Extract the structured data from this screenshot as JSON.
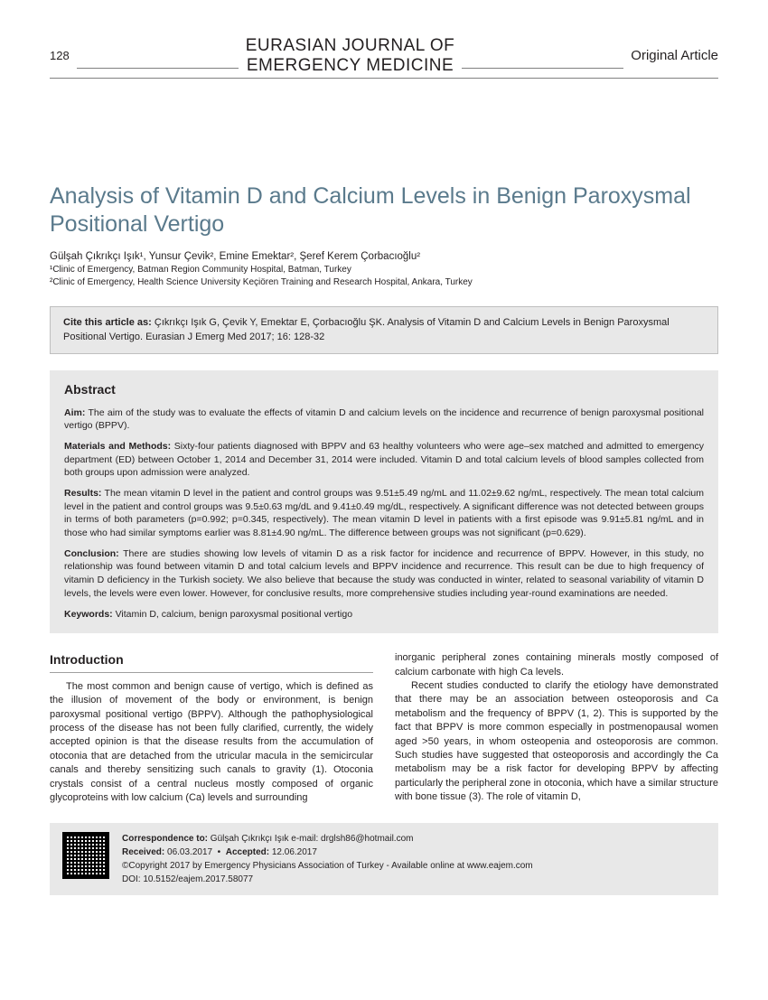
{
  "header": {
    "page_number": "128",
    "journal_line1": "EURASIAN JOURNAL OF",
    "journal_line2": "EMERGENCY MEDICINE",
    "article_type": "Original Article"
  },
  "title": "Analysis of Vitamin D and Calcium Levels in Benign Paroxysmal Positional Vertigo",
  "authors": "Gülşah Çıkrıkçı Işık¹, Yunsur Çevik², Emine Emektar², Şeref Kerem Çorbacıoğlu²",
  "affiliations": {
    "a1": "¹Clinic of Emergency, Batman Region Community Hospital, Batman, Turkey",
    "a2": "²Clinic of Emergency, Health Science University Keçiören Training and Research Hospital, Ankara, Turkey"
  },
  "cite": {
    "label": "Cite this article as:",
    "text": "Çıkrıkçı Işık G, Çevik Y, Emektar E, Çorbacıoğlu ŞK. Analysis of Vitamin D and Calcium Levels in Benign Paroxysmal Positional Vertigo. Eurasian J Emerg Med 2017; 16: 128-32"
  },
  "abstract": {
    "heading": "Abstract",
    "aim_label": "Aim:",
    "aim": "The aim of the study was to evaluate the effects of vitamin D and calcium levels on the incidence and recurrence of benign paroxysmal positional vertigo (BPPV).",
    "methods_label": "Materials and Methods:",
    "methods": "Sixty-four patients diagnosed with BPPV and 63 healthy volunteers who were age–sex matched and admitted to emergency department (ED) between October 1, 2014 and December 31, 2014 were included. Vitamin D and total calcium levels of blood samples collected from both groups upon admission were analyzed.",
    "results_label": "Results:",
    "results": "The mean vitamin D level in the patient and control groups was 9.51±5.49 ng/mL and 11.02±9.62 ng/mL, respectively. The mean total calcium level in the patient and control groups was 9.5±0.63 mg/dL and 9.41±0.49 mg/dL, respectively. A significant difference was not detected between groups in terms of both parameters (p=0.992; p=0.345, respectively). The mean vitamin D level in patients with a first episode was 9.91±5.81 ng/mL and in those who had similar symptoms earlier was 8.81±4.90 ng/mL. The difference between groups was not significant (p=0.629).",
    "conclusion_label": "Conclusion:",
    "conclusion": "There are studies showing low levels of vitamin D as a risk factor for incidence and recurrence of BPPV. However, in this study, no relationship was found between vitamin D and total calcium levels and BPPV incidence and recurrence. This result can be due to high frequency of vitamin D deficiency in the Turkish society. We also believe that because the study was conducted in winter, related to seasonal variability of vitamin D levels, the levels were even lower. However, for conclusive results, more comprehensive studies including year-round examinations are needed.",
    "keywords_label": "Keywords:",
    "keywords": "Vitamin D, calcium, benign paroxysmal positional vertigo"
  },
  "body": {
    "intro_heading": "Introduction",
    "col1_p1": "The most common and benign cause of vertigo, which is defined as the illusion of movement of the body or environment, is benign paroxysmal positional vertigo (BPPV). Although the pathophysiological process of the disease has not been fully clarified, currently, the widely accepted opinion is that the disease results from the accumulation of otoconia that are detached from the utricular macula in the semicircular canals and thereby sensitizing such canals to gravity (1). Otoconia crystals consist of a central nucleus mostly composed of organic glycoproteins with low calcium (Ca) levels and surrounding",
    "col2_p1": "inorganic peripheral zones containing minerals mostly composed of calcium carbonate with high Ca levels.",
    "col2_p2": "Recent studies conducted to clarify the etiology have demonstrated that there may be an association between osteoporosis and Ca metabolism and the frequency of BPPV (1, 2). This is supported by the fact that BPPV is more common especially in postmenopausal women aged >50 years, in whom osteopenia and osteoporosis are common. Such studies have suggested that osteoporosis and accordingly the Ca metabolism may be a risk factor for developing BPPV by affecting particularly the peripheral zone in otoconia, which have a similar structure with bone tissue (3). The role of vitamin D,"
  },
  "footer": {
    "corr_label": "Correspondence to:",
    "corr_name": "Gülşah Çıkrıkçı Işık   e-mail: drglsh86@hotmail.com",
    "received_label": "Received:",
    "received": "06.03.2017",
    "accepted_label": "Accepted:",
    "accepted": "12.06.2017",
    "copyright": "©Copyright 2017 by Emergency Physicians Association of Turkey - Available online at www.eajem.com",
    "doi": "DOI: 10.5152/eajem.2017.58077"
  },
  "colors": {
    "title_color": "#5a7a8c",
    "box_bg": "#e8e8e8",
    "border": "#bfbfbf",
    "text": "#231f20"
  }
}
